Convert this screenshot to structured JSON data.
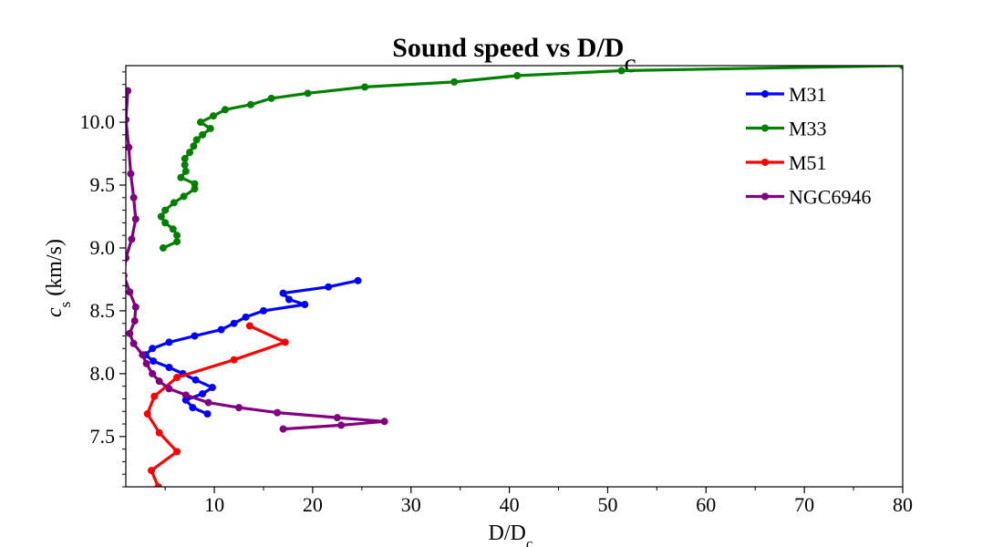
{
  "chart_data": {
    "type": "line",
    "title": "Sound speed vs D/D",
    "title_subscript": "c",
    "xlabel": "D/D",
    "xlabel_subscript": "c",
    "ylabel": "(km/s)",
    "ylabel_symbol": "c",
    "ylabel_symbol_subscript": "s",
    "xlim": [
      1,
      80
    ],
    "ylim": [
      7.1,
      10.45
    ],
    "xticks": [
      10,
      20,
      30,
      40,
      50,
      60,
      70,
      80
    ],
    "yticks": [
      7.5,
      8.0,
      8.5,
      9.0,
      9.5,
      10.0
    ],
    "ytick_labels": [
      "7.5",
      "8.0",
      "8.5",
      "9.0",
      "9.5",
      "10.0"
    ],
    "grid": false,
    "legend_position": "top-right",
    "series": [
      {
        "name": "M31",
        "color": "#0000ff",
        "points": [
          [
            24.6,
            8.74
          ],
          [
            21.6,
            8.69
          ],
          [
            17.0,
            8.64
          ],
          [
            17.6,
            8.59
          ],
          [
            19.2,
            8.55
          ],
          [
            15.0,
            8.5
          ],
          [
            13.2,
            8.45
          ],
          [
            12.0,
            8.4
          ],
          [
            10.7,
            8.35
          ],
          [
            8.0,
            8.3
          ],
          [
            5.4,
            8.25
          ],
          [
            3.7,
            8.2
          ],
          [
            3.0,
            8.15
          ],
          [
            3.8,
            8.1
          ],
          [
            5.4,
            8.05
          ],
          [
            6.8,
            8.0
          ],
          [
            8.1,
            7.95
          ],
          [
            9.8,
            7.89
          ],
          [
            8.8,
            7.84
          ],
          [
            7.1,
            7.79
          ],
          [
            7.8,
            7.73
          ],
          [
            9.3,
            7.68
          ]
        ]
      },
      {
        "name": "M33",
        "color": "#008000",
        "points": [
          [
            4.8,
            9.0
          ],
          [
            6.2,
            9.05
          ],
          [
            6.2,
            9.1
          ],
          [
            5.8,
            9.15
          ],
          [
            5.0,
            9.2
          ],
          [
            4.6,
            9.25
          ],
          [
            5.0,
            9.3
          ],
          [
            5.9,
            9.36
          ],
          [
            6.9,
            9.41
          ],
          [
            8.0,
            9.47
          ],
          [
            8.0,
            9.51
          ],
          [
            6.6,
            9.56
          ],
          [
            7.1,
            9.61
          ],
          [
            7.0,
            9.66
          ],
          [
            7.0,
            9.71
          ],
          [
            7.5,
            9.76
          ],
          [
            7.9,
            9.81
          ],
          [
            8.2,
            9.86
          ],
          [
            8.8,
            9.9
          ],
          [
            9.6,
            9.95
          ],
          [
            8.6,
            10.0
          ],
          [
            9.9,
            10.05
          ],
          [
            11.1,
            10.1
          ],
          [
            13.7,
            10.14
          ],
          [
            15.8,
            10.19
          ],
          [
            19.5,
            10.23
          ],
          [
            25.3,
            10.28
          ],
          [
            34.4,
            10.32
          ],
          [
            40.8,
            10.37
          ],
          [
            51.4,
            10.41
          ],
          [
            80.0,
            10.45
          ]
        ]
      },
      {
        "name": "M51",
        "color": "#ff0000",
        "points": [
          [
            13.6,
            8.38
          ],
          [
            17.2,
            8.25
          ],
          [
            12.0,
            8.11
          ],
          [
            6.2,
            7.97
          ],
          [
            3.9,
            7.82
          ],
          [
            3.2,
            7.68
          ],
          [
            4.4,
            7.53
          ],
          [
            6.2,
            7.38
          ],
          [
            3.6,
            7.23
          ],
          [
            4.3,
            7.1
          ]
        ]
      },
      {
        "name": "NGC6946",
        "color": "#800080",
        "points": [
          [
            1.2,
            10.25
          ],
          [
            1.0,
            10.02
          ],
          [
            1.3,
            9.8
          ],
          [
            1.5,
            9.59
          ],
          [
            1.8,
            9.4
          ],
          [
            2.0,
            9.23
          ],
          [
            1.6,
            9.07
          ],
          [
            1.0,
            8.92
          ],
          [
            0.8,
            8.78
          ],
          [
            1.4,
            8.65
          ],
          [
            2.0,
            8.53
          ],
          [
            1.9,
            8.42
          ],
          [
            1.4,
            8.32
          ],
          [
            1.8,
            8.24
          ],
          [
            2.7,
            8.15
          ],
          [
            3.1,
            8.08
          ],
          [
            3.7,
            8.0
          ],
          [
            4.4,
            7.94
          ],
          [
            5.4,
            7.88
          ],
          [
            7.1,
            7.83
          ],
          [
            9.4,
            7.77
          ],
          [
            12.5,
            7.73
          ],
          [
            16.4,
            7.69
          ],
          [
            22.5,
            7.65
          ],
          [
            27.3,
            7.62
          ],
          [
            22.9,
            7.59
          ],
          [
            17.0,
            7.56
          ]
        ]
      }
    ]
  }
}
